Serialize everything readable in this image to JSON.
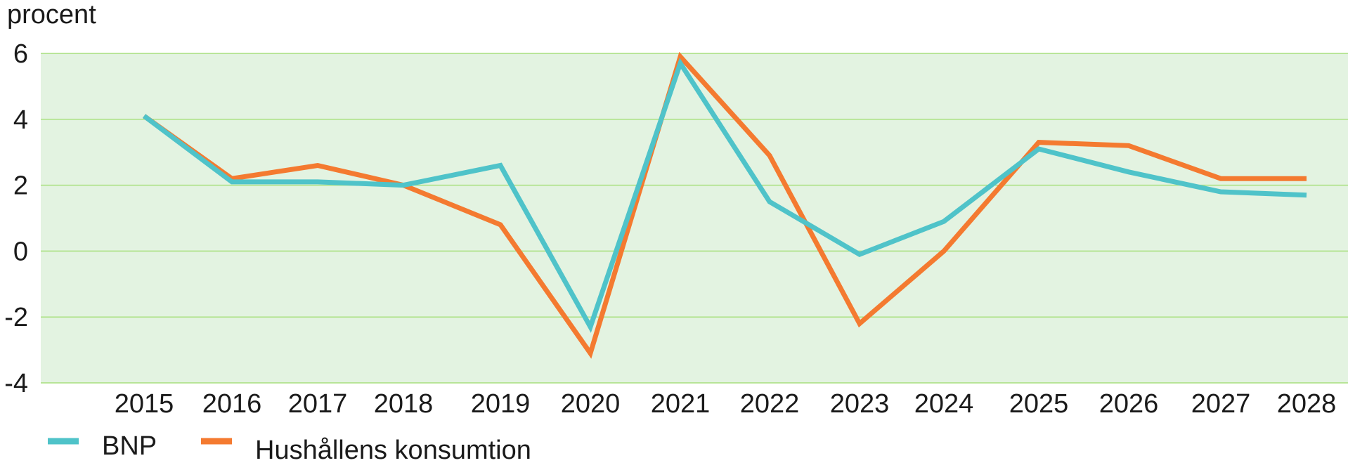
{
  "chart_data": {
    "type": "line",
    "ylabel": "procent",
    "ylim": [
      -4,
      6
    ],
    "yticks": [
      6,
      4,
      2,
      0,
      -2,
      -4
    ],
    "ytick_labels": [
      "6",
      "4",
      "2",
      "0",
      "-2",
      "-4"
    ],
    "categories": [
      "2015",
      "2016",
      "2017",
      "2018",
      "2019",
      "2020",
      "2021",
      "2022",
      "2023",
      "2024",
      "2025",
      "2026",
      "2027",
      "2028"
    ],
    "grid": true,
    "legend_position": "bottom-left",
    "colors": {
      "plot_background": "#e3f3e1",
      "gridline": "#a8e07e",
      "BNP": "#4fc3c9",
      "Hushållens konsumtion": "#f47a30"
    },
    "series": [
      {
        "name": "BNP",
        "values": [
          4.1,
          2.1,
          2.1,
          2.0,
          2.6,
          -2.3,
          5.7,
          1.5,
          -0.1,
          0.9,
          3.1,
          2.4,
          1.8,
          1.7
        ]
      },
      {
        "name": "Hushållens konsumtion",
        "values": [
          4.1,
          2.2,
          2.6,
          2.0,
          0.8,
          -3.1,
          5.9,
          2.9,
          -2.2,
          0.0,
          3.3,
          3.2,
          2.2,
          2.2
        ]
      }
    ]
  }
}
